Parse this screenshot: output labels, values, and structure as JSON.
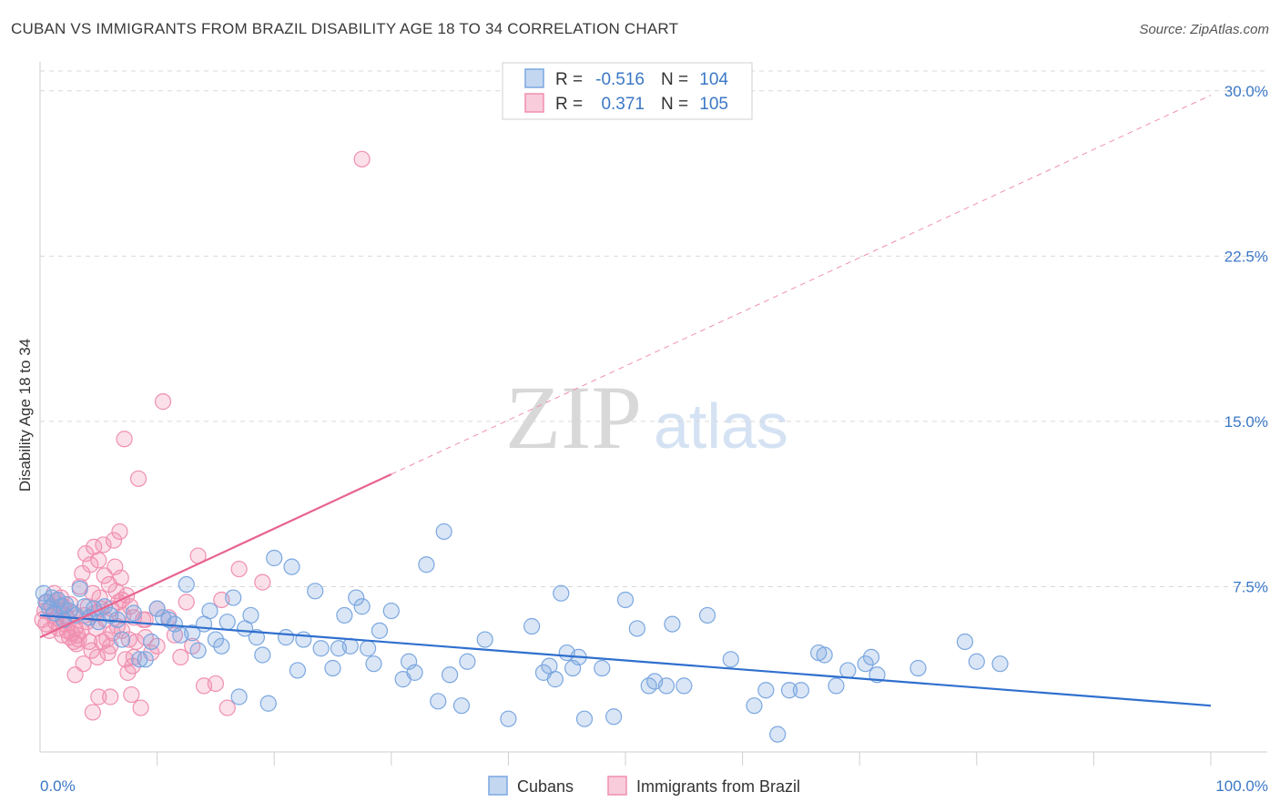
{
  "title": "CUBAN VS IMMIGRANTS FROM BRAZIL DISABILITY AGE 18 TO 34 CORRELATION CHART",
  "source": "Source: ZipAtlas.com",
  "watermark": {
    "zip": "ZIP",
    "atlas": "atlas"
  },
  "colors": {
    "blue": "#7ba7e0",
    "blue_fill": "rgba(123,167,224,0.28)",
    "blue_line": "#2f6fce",
    "pink": "#f08fb0",
    "pink_fill": "rgba(240,143,176,0.28)",
    "pink_line": "#e8638f",
    "tick_text": "#3b78c6",
    "grid": "#d9d9d9"
  },
  "legend": {
    "rows": [
      {
        "r_label": "R =",
        "r_value": "-0.516",
        "n_label": "N =",
        "n_value": "104"
      },
      {
        "r_label": "R =",
        "r_value": "0.371",
        "n_label": "N =",
        "n_value": "105"
      }
    ]
  },
  "bottom_legend": [
    "Cubans",
    "Immigrants from Brazil"
  ],
  "chart_data": {
    "type": "scatter",
    "title": "CUBAN VS IMMIGRANTS FROM BRAZIL DISABILITY AGE 18 TO 34 CORRELATION CHART",
    "xlabel": "",
    "ylabel": "Disability Age 18 to 34",
    "xlim": [
      0,
      100
    ],
    "ylim": [
      0,
      30.9
    ],
    "x_tick_labels": [
      "0.0%",
      "100.0%"
    ],
    "y_ticks": [
      7.5,
      15.0,
      22.5,
      30.0
    ],
    "y_tick_labels": [
      "7.5%",
      "15.0%",
      "22.5%",
      "30.0%"
    ],
    "grid": true,
    "legend_placement": "top-center",
    "series": [
      {
        "name": "Cubans",
        "R": -0.516,
        "N": 104,
        "trend": {
          "x": [
            0,
            100
          ],
          "y": [
            6.2,
            2.1
          ],
          "dashed_after": null
        },
        "points": [
          [
            0.3,
            7.2
          ],
          [
            0.5,
            6.8
          ],
          [
            0.8,
            6.5
          ],
          [
            1.0,
            7.0
          ],
          [
            1.2,
            6.3
          ],
          [
            1.5,
            6.9
          ],
          [
            1.8,
            6.6
          ],
          [
            2.0,
            6.0
          ],
          [
            2.2,
            6.7
          ],
          [
            2.5,
            6.4
          ],
          [
            3.0,
            6.2
          ],
          [
            3.4,
            7.4
          ],
          [
            3.8,
            6.6
          ],
          [
            4.2,
            6.1
          ],
          [
            4.6,
            6.5
          ],
          [
            5.0,
            5.9
          ],
          [
            5.5,
            6.6
          ],
          [
            6.0,
            6.2
          ],
          [
            6.6,
            6.0
          ],
          [
            7.0,
            5.1
          ],
          [
            8.0,
            6.3
          ],
          [
            8.5,
            4.2
          ],
          [
            9.0,
            4.2
          ],
          [
            9.5,
            5.0
          ],
          [
            10.0,
            6.5
          ],
          [
            10.5,
            6.1
          ],
          [
            11.0,
            6.0
          ],
          [
            11.5,
            5.8
          ],
          [
            12.0,
            5.3
          ],
          [
            12.5,
            7.6
          ],
          [
            13.0,
            5.4
          ],
          [
            13.5,
            4.6
          ],
          [
            14.0,
            5.8
          ],
          [
            14.5,
            6.4
          ],
          [
            15.0,
            5.1
          ],
          [
            15.5,
            4.8
          ],
          [
            16.0,
            5.9
          ],
          [
            16.5,
            7.0
          ],
          [
            17.0,
            2.5
          ],
          [
            17.5,
            5.6
          ],
          [
            18.0,
            6.2
          ],
          [
            18.5,
            5.2
          ],
          [
            19.0,
            4.4
          ],
          [
            19.5,
            2.2
          ],
          [
            20.0,
            8.8
          ],
          [
            21.0,
            5.2
          ],
          [
            21.5,
            8.4
          ],
          [
            22.0,
            3.7
          ],
          [
            22.5,
            5.1
          ],
          [
            23.5,
            7.3
          ],
          [
            24.0,
            4.7
          ],
          [
            25.0,
            3.8
          ],
          [
            25.5,
            4.7
          ],
          [
            26.0,
            6.2
          ],
          [
            26.5,
            4.8
          ],
          [
            27.0,
            7.0
          ],
          [
            27.5,
            6.6
          ],
          [
            28.0,
            4.7
          ],
          [
            28.5,
            4.0
          ],
          [
            29.0,
            5.5
          ],
          [
            30.0,
            6.4
          ],
          [
            31.0,
            3.3
          ],
          [
            31.5,
            4.1
          ],
          [
            32.0,
            3.6
          ],
          [
            33.0,
            8.5
          ],
          [
            34.0,
            2.3
          ],
          [
            34.5,
            10.0
          ],
          [
            35.0,
            3.5
          ],
          [
            36.0,
            2.1
          ],
          [
            36.5,
            4.1
          ],
          [
            38.0,
            5.1
          ],
          [
            40.0,
            1.5
          ],
          [
            42.0,
            5.7
          ],
          [
            43.0,
            3.6
          ],
          [
            43.5,
            3.9
          ],
          [
            44.0,
            3.3
          ],
          [
            44.5,
            7.2
          ],
          [
            45.0,
            4.5
          ],
          [
            45.5,
            3.8
          ],
          [
            46.0,
            4.3
          ],
          [
            46.5,
            1.5
          ],
          [
            48.0,
            3.8
          ],
          [
            49.0,
            1.6
          ],
          [
            50.0,
            6.9
          ],
          [
            51.0,
            5.6
          ],
          [
            52.0,
            3.0
          ],
          [
            52.5,
            3.2
          ],
          [
            53.5,
            3.0
          ],
          [
            54.0,
            5.8
          ],
          [
            55.0,
            3.0
          ],
          [
            57.0,
            6.2
          ],
          [
            59.0,
            4.2
          ],
          [
            61.0,
            2.1
          ],
          [
            62.0,
            2.8
          ],
          [
            63.0,
            0.8
          ],
          [
            64.0,
            2.8
          ],
          [
            65.0,
            2.8
          ],
          [
            66.5,
            4.5
          ],
          [
            67.0,
            4.4
          ],
          [
            68.0,
            3.0
          ],
          [
            69.0,
            3.7
          ],
          [
            70.5,
            4.0
          ],
          [
            71.0,
            4.3
          ],
          [
            71.5,
            3.5
          ],
          [
            75.0,
            3.8
          ],
          [
            79.0,
            5.0
          ],
          [
            80.0,
            4.1
          ],
          [
            82.0,
            4.0
          ]
        ]
      },
      {
        "name": "Immigrants from Brazil",
        "R": 0.371,
        "N": 105,
        "trend": {
          "x": [
            0,
            30,
            100
          ],
          "y": [
            5.2,
            12.6,
            29.8
          ],
          "dashed_after": 30
        },
        "points": [
          [
            0.2,
            6.0
          ],
          [
            0.4,
            6.4
          ],
          [
            0.5,
            5.8
          ],
          [
            0.6,
            6.8
          ],
          [
            0.8,
            5.5
          ],
          [
            1.0,
            6.6
          ],
          [
            1.1,
            6.2
          ],
          [
            1.2,
            7.2
          ],
          [
            1.3,
            5.9
          ],
          [
            1.4,
            6.1
          ],
          [
            1.5,
            6.9
          ],
          [
            1.6,
            5.6
          ],
          [
            1.7,
            6.4
          ],
          [
            1.8,
            7.0
          ],
          [
            1.9,
            5.3
          ],
          [
            2.0,
            6.6
          ],
          [
            2.1,
            5.8
          ],
          [
            2.2,
            6.2
          ],
          [
            2.3,
            5.5
          ],
          [
            2.4,
            6.0
          ],
          [
            2.5,
            5.2
          ],
          [
            2.6,
            6.7
          ],
          [
            2.7,
            5.4
          ],
          [
            2.8,
            6.3
          ],
          [
            2.9,
            5.0
          ],
          [
            3.0,
            5.6
          ],
          [
            3.1,
            4.9
          ],
          [
            3.2,
            5.3
          ],
          [
            3.3,
            5.1
          ],
          [
            3.4,
            7.5
          ],
          [
            3.5,
            5.5
          ],
          [
            3.6,
            8.1
          ],
          [
            3.7,
            4.0
          ],
          [
            3.8,
            6.2
          ],
          [
            3.9,
            9.0
          ],
          [
            4.0,
            5.9
          ],
          [
            4.1,
            6.6
          ],
          [
            4.2,
            5.0
          ],
          [
            4.3,
            8.5
          ],
          [
            4.4,
            4.6
          ],
          [
            4.5,
            7.2
          ],
          [
            4.6,
            9.3
          ],
          [
            4.7,
            6.3
          ],
          [
            4.8,
            5.6
          ],
          [
            4.9,
            4.3
          ],
          [
            5.0,
            8.7
          ],
          [
            5.1,
            7.0
          ],
          [
            5.2,
            6.5
          ],
          [
            5.3,
            5.0
          ],
          [
            5.4,
            9.4
          ],
          [
            5.5,
            8.0
          ],
          [
            5.6,
            6.0
          ],
          [
            5.7,
            5.1
          ],
          [
            5.8,
            4.5
          ],
          [
            5.9,
            7.6
          ],
          [
            6.0,
            2.5
          ],
          [
            6.1,
            6.5
          ],
          [
            6.2,
            5.4
          ],
          [
            6.3,
            9.6
          ],
          [
            6.4,
            8.4
          ],
          [
            6.5,
            7.3
          ],
          [
            6.6,
            5.7
          ],
          [
            6.7,
            6.8
          ],
          [
            6.8,
            10.0
          ],
          [
            6.9,
            7.9
          ],
          [
            7.0,
            5.5
          ],
          [
            7.1,
            6.2
          ],
          [
            7.2,
            14.2
          ],
          [
            7.3,
            4.2
          ],
          [
            7.4,
            7.1
          ],
          [
            7.5,
            3.6
          ],
          [
            7.6,
            5.1
          ],
          [
            7.7,
            6.6
          ],
          [
            7.8,
            2.6
          ],
          [
            7.9,
            3.9
          ],
          [
            8.0,
            6.1
          ],
          [
            8.2,
            5.0
          ],
          [
            8.4,
            12.4
          ],
          [
            8.6,
            2.0
          ],
          [
            8.8,
            6.0
          ],
          [
            9.0,
            5.2
          ],
          [
            9.5,
            4.5
          ],
          [
            10.0,
            6.5
          ],
          [
            10.5,
            15.9
          ],
          [
            11.0,
            6.1
          ],
          [
            11.5,
            5.3
          ],
          [
            12.0,
            4.3
          ],
          [
            12.5,
            6.8
          ],
          [
            13.0,
            4.8
          ],
          [
            13.5,
            8.9
          ],
          [
            14.0,
            3.0
          ],
          [
            15.0,
            3.1
          ],
          [
            15.5,
            6.9
          ],
          [
            16.0,
            2.0
          ],
          [
            17.0,
            8.3
          ],
          [
            19.0,
            7.7
          ],
          [
            27.5,
            26.9
          ],
          [
            3.0,
            3.5
          ],
          [
            4.5,
            1.8
          ],
          [
            5.0,
            2.5
          ],
          [
            6.0,
            4.8
          ],
          [
            7.0,
            6.9
          ],
          [
            8.0,
            4.3
          ],
          [
            9.0,
            6.0
          ],
          [
            10.0,
            4.8
          ]
        ]
      }
    ]
  }
}
